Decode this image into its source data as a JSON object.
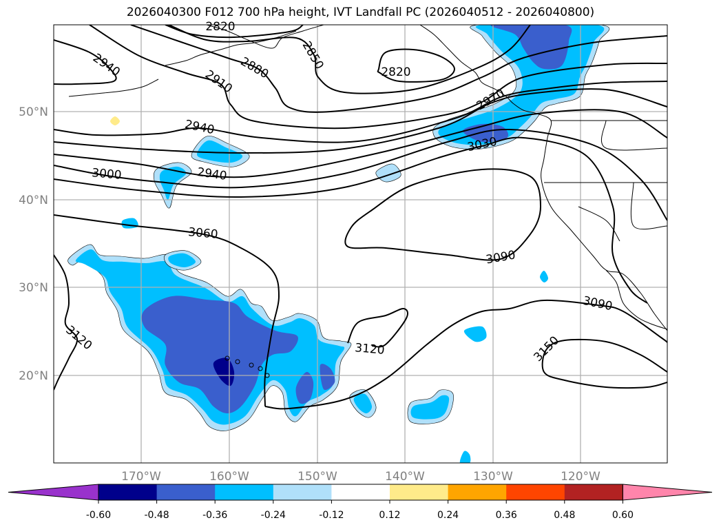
{
  "title": "2026040300 F012 700 hPa height, IVT Landfall PC (2026040512 - 2026040800)",
  "axes": {
    "lon_labels": [
      "170°W",
      "160°W",
      "150°W",
      "140°W",
      "130°W",
      "120°W"
    ],
    "lat_labels": [
      "50°N",
      "40°N",
      "30°N",
      "20°N"
    ]
  },
  "contour_labels": [
    "2820",
    "2850",
    "2880",
    "2910",
    "2940",
    "2940",
    "2820",
    "2970",
    "2940",
    "3000",
    "3030",
    "3060",
    "3090",
    "3120",
    "3090",
    "3120",
    "3150",
    "3150",
    "3120"
  ],
  "colorbar": {
    "labels": [
      "-0.60",
      "-0.48",
      "-0.36",
      "-0.24",
      "-0.12",
      "0.12",
      "0.24",
      "0.36",
      "0.48",
      "0.60"
    ],
    "colors": [
      "#9932cc",
      "#00008b",
      "#3a5fcd",
      "#00bfff",
      "#b0e0fa",
      "#ffffff",
      "#ffeb8a",
      "#ffa500",
      "#ff4500",
      "#b22222",
      "#ff85ab"
    ]
  },
  "chart_data": {
    "type": "contour-map",
    "title": "2026040300 F012 700 hPa height, IVT Landfall PC (2026040512 - 2026040800)",
    "lon_range": [
      -180,
      -110
    ],
    "lat_range": [
      10,
      60
    ],
    "contour_interval": 30,
    "contour_levels": [
      2820,
      2850,
      2880,
      2910,
      2940,
      2970,
      3000,
      3030,
      3060,
      3090,
      3120,
      3150
    ],
    "fill_levels": [
      -0.6,
      -0.48,
      -0.36,
      -0.24,
      -0.12,
      0.12,
      0.24,
      0.36,
      0.48,
      0.6
    ],
    "grid": true
  }
}
